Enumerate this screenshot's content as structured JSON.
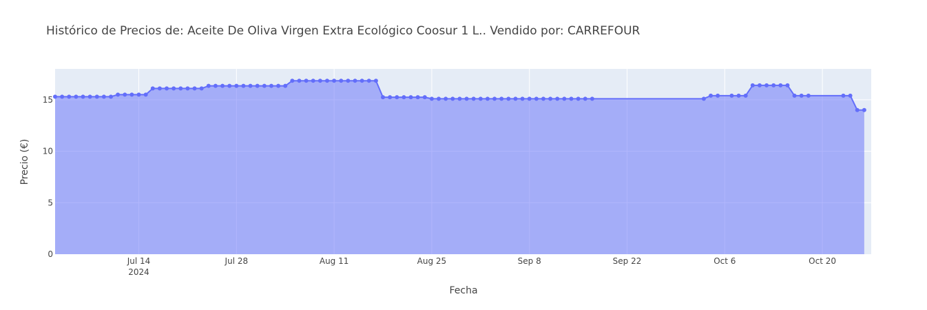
{
  "chart_data": {
    "type": "area",
    "title": "Histórico de Precios de: Aceite De Oliva Virgen Extra Ecológico Coosur 1 L.. Vendido por: CARREFOUR",
    "xlabel": "Fecha",
    "ylabel": "Precio (€)",
    "xlim": [
      "2024-07-02",
      "2024-10-27"
    ],
    "ylim": [
      0,
      18
    ],
    "y_ticks": [
      0,
      5,
      10,
      15
    ],
    "y_tick_labels": [
      "0",
      "5",
      "10",
      "15"
    ],
    "x_ticks": [
      {
        "date": "2024-07-14",
        "label": "Jul 14",
        "sublabel": "2024"
      },
      {
        "date": "2024-07-28",
        "label": "Jul 28",
        "sublabel": ""
      },
      {
        "date": "2024-08-11",
        "label": "Aug 11",
        "sublabel": ""
      },
      {
        "date": "2024-08-25",
        "label": "Aug 25",
        "sublabel": ""
      },
      {
        "date": "2024-09-08",
        "label": "Sep 8",
        "sublabel": ""
      },
      {
        "date": "2024-09-22",
        "label": "Sep 22",
        "sublabel": ""
      },
      {
        "date": "2024-10-06",
        "label": "Oct 6",
        "sublabel": ""
      },
      {
        "date": "2024-10-20",
        "label": "Oct 20",
        "sublabel": ""
      }
    ],
    "grid": true,
    "colors": {
      "line": "#636efa",
      "fill": "rgba(99,110,250,0.5)",
      "plot_bg": "#e5ecf6",
      "grid": "#ffffff"
    },
    "series": [
      {
        "points": [
          [
            "2024-07-02",
            15.3
          ],
          [
            "2024-07-03",
            15.3
          ],
          [
            "2024-07-04",
            15.3
          ],
          [
            "2024-07-05",
            15.3
          ],
          [
            "2024-07-06",
            15.3
          ],
          [
            "2024-07-07",
            15.3
          ],
          [
            "2024-07-08",
            15.3
          ],
          [
            "2024-07-09",
            15.3
          ],
          [
            "2024-07-10",
            15.3
          ],
          [
            "2024-07-11",
            15.5
          ],
          [
            "2024-07-12",
            15.5
          ],
          [
            "2024-07-13",
            15.5
          ],
          [
            "2024-07-14",
            15.5
          ],
          [
            "2024-07-15",
            15.5
          ],
          [
            "2024-07-16",
            16.1
          ],
          [
            "2024-07-17",
            16.1
          ],
          [
            "2024-07-18",
            16.1
          ],
          [
            "2024-07-19",
            16.1
          ],
          [
            "2024-07-20",
            16.1
          ],
          [
            "2024-07-21",
            16.1
          ],
          [
            "2024-07-22",
            16.1
          ],
          [
            "2024-07-23",
            16.1
          ],
          [
            "2024-07-24",
            16.35
          ],
          [
            "2024-07-25",
            16.35
          ],
          [
            "2024-07-26",
            16.35
          ],
          [
            "2024-07-27",
            16.35
          ],
          [
            "2024-07-28",
            16.35
          ],
          [
            "2024-07-29",
            16.35
          ],
          [
            "2024-07-30",
            16.35
          ],
          [
            "2024-07-31",
            16.35
          ],
          [
            "2024-08-01",
            16.35
          ],
          [
            "2024-08-02",
            16.35
          ],
          [
            "2024-08-03",
            16.35
          ],
          [
            "2024-08-04",
            16.35
          ],
          [
            "2024-08-05",
            16.85
          ],
          [
            "2024-08-06",
            16.85
          ],
          [
            "2024-08-07",
            16.85
          ],
          [
            "2024-08-08",
            16.85
          ],
          [
            "2024-08-09",
            16.85
          ],
          [
            "2024-08-10",
            16.85
          ],
          [
            "2024-08-11",
            16.85
          ],
          [
            "2024-08-12",
            16.85
          ],
          [
            "2024-08-13",
            16.85
          ],
          [
            "2024-08-14",
            16.85
          ],
          [
            "2024-08-15",
            16.85
          ],
          [
            "2024-08-16",
            16.85
          ],
          [
            "2024-08-17",
            16.85
          ],
          [
            "2024-08-18",
            15.25
          ],
          [
            "2024-08-19",
            15.25
          ],
          [
            "2024-08-20",
            15.25
          ],
          [
            "2024-08-21",
            15.25
          ],
          [
            "2024-08-22",
            15.25
          ],
          [
            "2024-08-23",
            15.25
          ],
          [
            "2024-08-24",
            15.25
          ],
          [
            "2024-08-25",
            15.1
          ],
          [
            "2024-08-26",
            15.1
          ],
          [
            "2024-08-27",
            15.1
          ],
          [
            "2024-08-28",
            15.1
          ],
          [
            "2024-08-29",
            15.1
          ],
          [
            "2024-08-30",
            15.1
          ],
          [
            "2024-08-31",
            15.1
          ],
          [
            "2024-09-01",
            15.1
          ],
          [
            "2024-09-02",
            15.1
          ],
          [
            "2024-09-03",
            15.1
          ],
          [
            "2024-09-04",
            15.1
          ],
          [
            "2024-09-05",
            15.1
          ],
          [
            "2024-09-06",
            15.1
          ],
          [
            "2024-09-07",
            15.1
          ],
          [
            "2024-09-08",
            15.1
          ],
          [
            "2024-09-09",
            15.1
          ],
          [
            "2024-09-10",
            15.1
          ],
          [
            "2024-09-11",
            15.1
          ],
          [
            "2024-09-12",
            15.1
          ],
          [
            "2024-09-13",
            15.1
          ],
          [
            "2024-09-14",
            15.1
          ],
          [
            "2024-09-15",
            15.1
          ],
          [
            "2024-09-16",
            15.1
          ],
          [
            "2024-09-17",
            15.1
          ],
          [
            "2024-10-03",
            15.1
          ],
          [
            "2024-10-04",
            15.4
          ],
          [
            "2024-10-05",
            15.4
          ],
          [
            "2024-10-07",
            15.4
          ],
          [
            "2024-10-08",
            15.4
          ],
          [
            "2024-10-09",
            15.4
          ],
          [
            "2024-10-10",
            16.4
          ],
          [
            "2024-10-11",
            16.4
          ],
          [
            "2024-10-12",
            16.4
          ],
          [
            "2024-10-13",
            16.4
          ],
          [
            "2024-10-14",
            16.4
          ],
          [
            "2024-10-15",
            16.4
          ],
          [
            "2024-10-16",
            15.4
          ],
          [
            "2024-10-17",
            15.4
          ],
          [
            "2024-10-18",
            15.4
          ],
          [
            "2024-10-23",
            15.4
          ],
          [
            "2024-10-24",
            15.4
          ],
          [
            "2024-10-25",
            14.0
          ],
          [
            "2024-10-26",
            14.0
          ]
        ]
      }
    ]
  }
}
